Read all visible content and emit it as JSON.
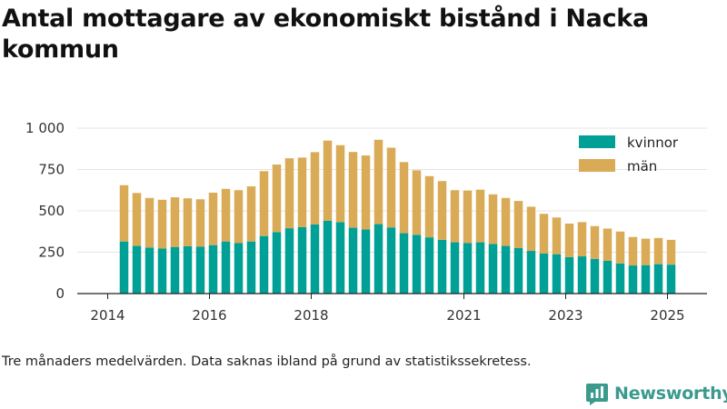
{
  "title": "Antal mottagare av ekonomiskt bistånd i Nacka kommun",
  "note": "Tre månaders medelvärden. Data saknas ibland på grund av statistikssekretess.",
  "brand": {
    "name": "Newsworthy",
    "color": "#3a9a8c"
  },
  "chart_data": {
    "type": "bar",
    "stacked": true,
    "x_axis": {
      "ticks": [
        "2014",
        "2016",
        "2018",
        "2021",
        "2023",
        "2025"
      ]
    },
    "y_axis": {
      "range": [
        0,
        1000
      ],
      "ticks": [
        0,
        250,
        500,
        750,
        1000
      ],
      "tick_labels": [
        "0",
        "250",
        "500",
        "750",
        "1 000"
      ]
    },
    "grid": true,
    "legend_position": "top-right",
    "categories": [
      "2014-Q2",
      "2014-Q3",
      "2014-Q4",
      "2015-Q1",
      "2015-Q2",
      "2015-Q3",
      "2015-Q4",
      "2016-Q1",
      "2016-Q2",
      "2016-Q3",
      "2016-Q4",
      "2017-Q1",
      "2017-Q2",
      "2017-Q3",
      "2017-Q4",
      "2018-Q1",
      "2018-Q2",
      "2018-Q3",
      "2018-Q4",
      "2019-Q1",
      "2019-Q2",
      "2019-Q3",
      "2019-Q4",
      "2020-Q1",
      "2020-Q2",
      "2020-Q3",
      "2020-Q4",
      "2021-Q1",
      "2021-Q2",
      "2021-Q3",
      "2021-Q4",
      "2022-Q1",
      "2022-Q2",
      "2022-Q3",
      "2022-Q4",
      "2023-Q1",
      "2023-Q2",
      "2023-Q3",
      "2023-Q4",
      "2024-Q1",
      "2024-Q2",
      "2024-Q3",
      "2024-Q4",
      "2025-Q1"
    ],
    "series": [
      {
        "name": "kvinnor",
        "color": "#00a096",
        "values": [
          315,
          288,
          278,
          272,
          282,
          286,
          283,
          293,
          315,
          305,
          315,
          348,
          372,
          395,
          402,
          418,
          440,
          432,
          398,
          388,
          420,
          400,
          365,
          355,
          340,
          325,
          310,
          305,
          310,
          300,
          288,
          275,
          258,
          242,
          238,
          220,
          225,
          210,
          198,
          182,
          170,
          172,
          178,
          175
        ]
      },
      {
        "name": "män",
        "color": "#d9ab57",
        "values": [
          340,
          320,
          300,
          295,
          300,
          290,
          287,
          317,
          318,
          320,
          333,
          392,
          408,
          423,
          420,
          437,
          485,
          465,
          458,
          447,
          510,
          482,
          430,
          390,
          370,
          355,
          315,
          318,
          318,
          300,
          290,
          285,
          267,
          240,
          222,
          203,
          207,
          198,
          195,
          193,
          172,
          160,
          158,
          150
        ]
      }
    ]
  }
}
